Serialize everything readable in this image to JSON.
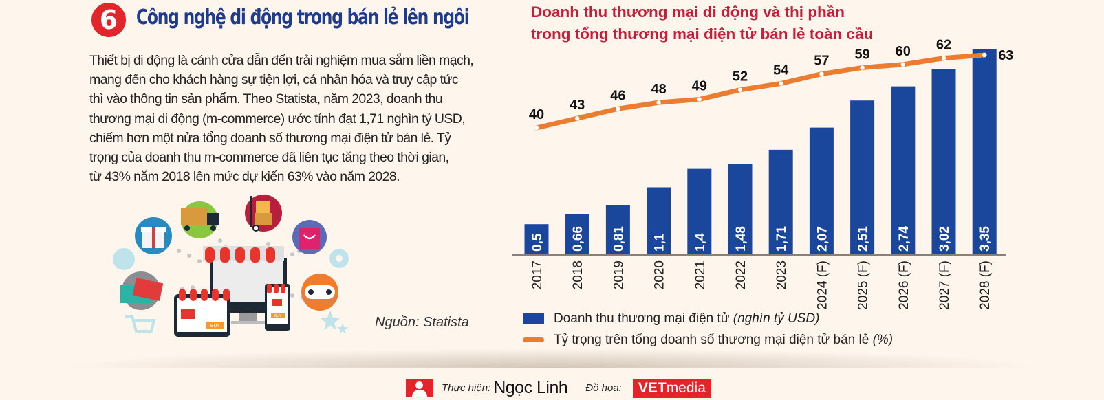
{
  "section_number": "6",
  "title": "Công nghệ di động trong bán lẻ lên ngôi",
  "intro_lines": [
    "Thiết bị di động là cánh cửa dẫn đến trải nghiệm mua sắm liền mạch,",
    "mang đến cho khách hàng sự tiện lợi, cá nhân hóa và truy cập tức",
    "thì vào thông tin sản phẩm. Theo Statista, năm 2023, doanh thu",
    "thương mại di động (m-commerce) ước tính đạt 1,71 nghìn tỷ USD,",
    "chiếm hơn một nửa tổng doanh số thương mại điện tử bán lẻ. Tỷ",
    "trọng của doanh thu m-commerce đã liên tục tăng theo thời gian,",
    "từ 43% năm 2018 lên mức dự kiến 63% vào năm 2028."
  ],
  "source": "Nguồn: Statista",
  "illustration": {
    "button_label": "BUY"
  },
  "colors": {
    "bar": "#1a479c",
    "line": "#ec7c30",
    "title_red": "#c41e3a",
    "title_blue": "#1d3c8f",
    "badge_red": "#e2242b",
    "background": "#fef5ec"
  },
  "chart_data": {
    "type": "bar+line",
    "title_lines": [
      "Doanh thu thương mại di động và thị phần",
      "trong tổng thương mại điện tử bán lẻ toàn cầu"
    ],
    "categories": [
      "2017",
      "2018",
      "2019",
      "2020",
      "2021",
      "2022",
      "2023",
      "2024 (F)",
      "2025 (F)",
      "2026 (F)",
      "2027 (F)",
      "2028 (F)"
    ],
    "series": [
      {
        "name": "Doanh thu thương mại điện tử",
        "unit": "(nghìn tỷ USD)",
        "type": "bar",
        "values": [
          0.5,
          0.66,
          0.81,
          1.1,
          1.4,
          1.48,
          1.71,
          2.07,
          2.51,
          2.74,
          3.02,
          3.35
        ],
        "labels": [
          "0,5",
          "0,66",
          "0,81",
          "1,1",
          "1,4",
          "1,48",
          "1,71",
          "2,07",
          "2,51",
          "2,74",
          "3,02",
          "3,35"
        ]
      },
      {
        "name": "Tỷ trọng trên tổng doanh số thương mại điện tử bán lẻ",
        "unit": "(%)",
        "type": "line",
        "values": [
          40,
          43,
          46,
          48,
          49,
          52,
          54,
          57,
          59,
          60,
          62,
          63
        ],
        "labels": [
          "40",
          "43",
          "46",
          "48",
          "49",
          "52",
          "54",
          "57",
          "59",
          "60",
          "62",
          "63"
        ]
      }
    ],
    "bar_ylim": [
      0,
      3.35
    ],
    "line_ylim": [
      40,
      63
    ],
    "grid": false,
    "legend_position": "bottom-left"
  },
  "footer": {
    "author_label": "Thực hiện:",
    "author_name": "Ngọc Linh",
    "design_label": "Đồ họa:",
    "logo_bold": "VET",
    "logo_light": "media"
  }
}
